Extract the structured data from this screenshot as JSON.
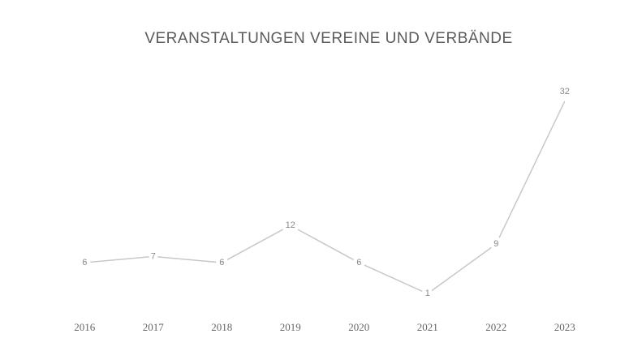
{
  "chart_data": {
    "type": "line",
    "title": "VERANSTALTUNGEN VEREINE UND VERBÄNDE",
    "categories": [
      "2016",
      "2017",
      "2018",
      "2019",
      "2020",
      "2021",
      "2022",
      "2023"
    ],
    "values": [
      6,
      7,
      6,
      12,
      6,
      1,
      9,
      32
    ],
    "color": "#c8c8c8",
    "ylim": [
      0,
      35
    ]
  }
}
